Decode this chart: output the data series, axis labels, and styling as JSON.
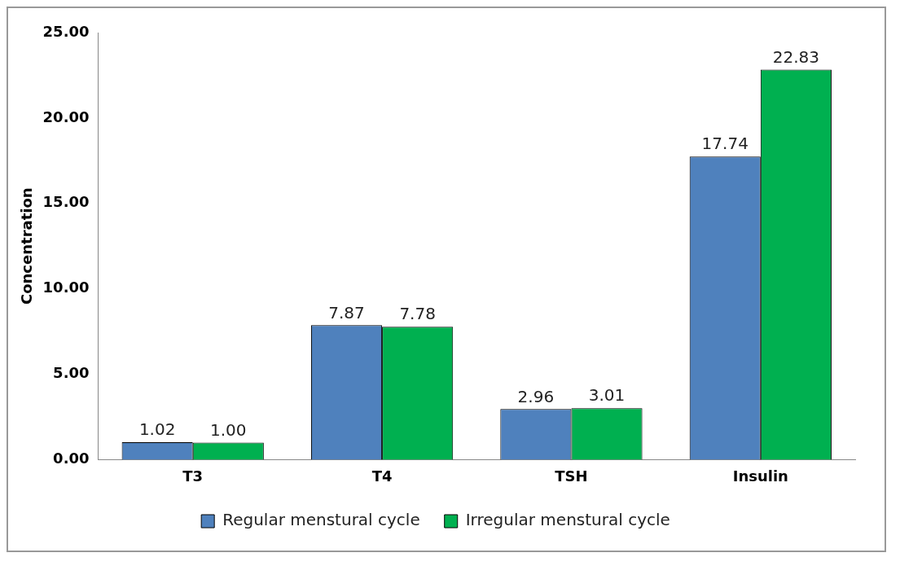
{
  "chart_data": {
    "type": "bar",
    "ylabel": "Concentration",
    "categories": [
      "T3",
      "T4",
      "TSH",
      "Insulin"
    ],
    "series": [
      {
        "name": "Regular menstural cycle",
        "color": "#4f81bd",
        "values": [
          1.02,
          7.87,
          2.96,
          17.74
        ],
        "value_labels": [
          "1.02",
          "7.87",
          "2.96",
          "17.74"
        ]
      },
      {
        "name": "Irregular menstural cycle",
        "color": "#00b050",
        "values": [
          1.0,
          7.78,
          3.01,
          22.83
        ],
        "value_labels": [
          "1.00",
          "7.78",
          "3.01",
          "22.83"
        ]
      }
    ],
    "ylim": [
      0,
      25
    ],
    "yticks": [
      {
        "value": 0,
        "label": "0.00"
      },
      {
        "value": 5,
        "label": "5.00"
      },
      {
        "value": 10,
        "label": "10.00"
      },
      {
        "value": 15,
        "label": "15.00"
      },
      {
        "value": 20,
        "label": "20.00"
      },
      {
        "value": 25,
        "label": "25.00"
      }
    ],
    "grid": false,
    "legend": "bottom"
  }
}
